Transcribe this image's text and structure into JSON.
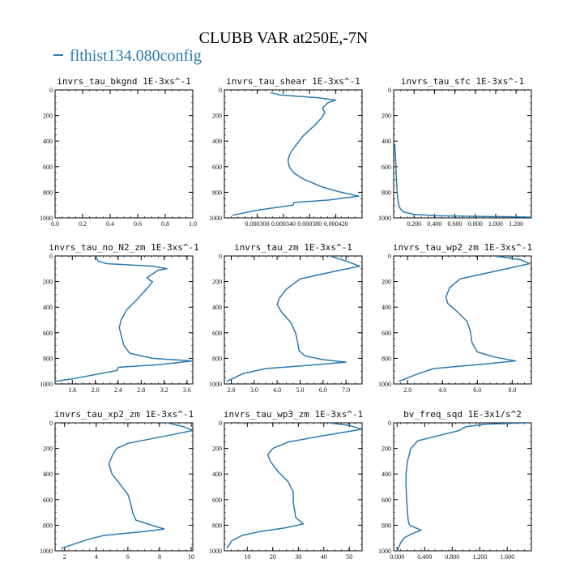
{
  "title": "CLUBB VAR at250E,-7N",
  "legend": [
    {
      "name": "flthist134.080config",
      "color": "#2a7ab0"
    }
  ],
  "chart_data": [
    {
      "type": "line",
      "title": "invrs_tau_bkgnd   1E-3xs^-1",
      "xlim": [
        0,
        1.0
      ],
      "xticks": [
        "0.0",
        "0.2",
        "0.4",
        "0.6",
        "0.8",
        "1.0"
      ],
      "ylim": [
        1000,
        0
      ],
      "yticks": [
        "0",
        "200",
        "400",
        "600",
        "800",
        "1000"
      ],
      "series": [
        {
          "name": "flthist134.080config",
          "x": [],
          "y": []
        }
      ]
    },
    {
      "type": "line",
      "title": "invrs_tau_shear   1E-3xs^-1",
      "xlim": [
        0.00025,
        0.00046
      ],
      "xticks": [
        "0.000300",
        "0.000340",
        "0.000380",
        "0.000420"
      ],
      "ylim": [
        1000,
        0
      ],
      "yticks": [
        "0",
        "200",
        "400",
        "600",
        "800",
        "1000"
      ],
      "series": [
        {
          "name": "flthist134.080config",
          "x": [
            0.00032,
            0.000335,
            0.00039,
            0.00042,
            0.000408,
            0.0004,
            0.000403,
            0.000398,
            0.000387,
            0.00037,
            0.000358,
            0.00035,
            0.000347,
            0.000349,
            0.000356,
            0.000372,
            0.0004,
            0.000428,
            0.000455,
            0.00041,
            0.000356,
            0.000355,
            0.0003,
            0.000262
          ],
          "y": [
            20,
            40,
            60,
            80,
            100,
            140,
            180,
            220,
            280,
            360,
            440,
            500,
            550,
            600,
            650,
            700,
            760,
            800,
            830,
            860,
            880,
            900,
            940,
            980
          ]
        }
      ]
    },
    {
      "type": "line",
      "title": "invrs_tau_sfc   1E-3xs^-1",
      "xlim": [
        0,
        1.35
      ],
      "xticks": [
        "0.200",
        "0.400",
        "0.600",
        "0.800",
        "1.000",
        "1.200"
      ],
      "ylim": [
        1000,
        0
      ],
      "yticks": [
        "0",
        "200",
        "400",
        "600",
        "800",
        "1000"
      ],
      "series": [
        {
          "name": "flthist134.080config",
          "x": [
            0.01,
            0.02,
            0.025,
            0.03,
            0.035,
            0.04,
            0.05,
            0.065,
            0.1,
            0.2,
            0.4,
            0.8,
            1.2,
            1.35
          ],
          "y": [
            420,
            550,
            650,
            750,
            800,
            850,
            900,
            930,
            955,
            972,
            982,
            988,
            992,
            994
          ]
        }
      ]
    },
    {
      "type": "line",
      "title": "invrs_tau_no_N2_zm   1E-3xs^-1",
      "xlim": [
        1.3,
        3.7
      ],
      "xticks": [
        "1.6",
        "2.0",
        "2.4",
        "2.8",
        "3.2",
        "3.6"
      ],
      "ylim": [
        1000,
        0
      ],
      "yticks": [
        "0",
        "200",
        "400",
        "600",
        "800",
        "1000"
      ],
      "series": [
        {
          "name": "flthist134.080config",
          "x": [
            2.0,
            2.05,
            2.2,
            3.0,
            3.25,
            3.1,
            2.9,
            2.95,
            3.0,
            2.95,
            2.75,
            2.55,
            2.45,
            2.42,
            2.45,
            2.5,
            2.6,
            3.0,
            3.7,
            3.1,
            2.4,
            2.38,
            1.6,
            1.3
          ],
          "y": [
            0,
            40,
            60,
            80,
            100,
            110,
            170,
            190,
            200,
            230,
            330,
            420,
            500,
            560,
            620,
            700,
            760,
            800,
            820,
            850,
            870,
            895,
            960,
            980
          ]
        }
      ]
    },
    {
      "type": "line",
      "title": "invrs_tau_zm   1E-3xs^-1",
      "xlim": [
        1.7,
        7.7
      ],
      "xticks": [
        "2.0",
        "3.0",
        "4.0",
        "5.0",
        "6.0",
        "7.0"
      ],
      "ylim": [
        1000,
        0
      ],
      "yticks": [
        "0",
        "200",
        "400",
        "600",
        "800",
        "1000"
      ],
      "series": [
        {
          "name": "flthist134.080config",
          "x": [
            6.3,
            7.0,
            7.6,
            6.5,
            5.0,
            4.4,
            4.1,
            4.0,
            4.2,
            4.6,
            4.8,
            4.9,
            4.95,
            5.2,
            6.0,
            7.0,
            5.0,
            3.5,
            2.5,
            1.8
          ],
          "y": [
            0,
            40,
            80,
            120,
            180,
            260,
            330,
            380,
            440,
            520,
            600,
            680,
            740,
            780,
            810,
            830,
            860,
            880,
            920,
            980
          ]
        }
      ]
    },
    {
      "type": "line",
      "title": "invrs_tau_wp2_zm   1E-3xs^-1",
      "xlim": [
        1.2,
        9.1
      ],
      "xticks": [
        "2.0",
        "4.0",
        "6.0",
        "8.0"
      ],
      "ylim": [
        1000,
        0
      ],
      "yticks": [
        "0",
        "200",
        "400",
        "600",
        "800",
        "1000"
      ],
      "series": [
        {
          "name": "flthist134.080config",
          "x": [
            7.0,
            8.5,
            9.0,
            7.0,
            5.0,
            4.4,
            4.2,
            4.3,
            4.8,
            5.4,
            5.6,
            5.7,
            6.0,
            7.0,
            8.2,
            6.0,
            3.5,
            2.6,
            1.5
          ],
          "y": [
            0,
            30,
            60,
            120,
            180,
            250,
            320,
            370,
            430,
            510,
            590,
            680,
            750,
            790,
            820,
            850,
            880,
            920,
            980
          ]
        }
      ]
    },
    {
      "type": "line",
      "title": "invrs_tau_xp2_zm   1E-3xs^-1",
      "xlim": [
        1.4,
        10.1
      ],
      "xticks": [
        "2",
        "4",
        "6",
        "8",
        "10"
      ],
      "ylim": [
        1000,
        0
      ],
      "yticks": [
        "0",
        "200",
        "400",
        "600",
        "800",
        "1000"
      ],
      "series": [
        {
          "name": "flthist134.080config",
          "x": [
            8.5,
            9.5,
            10.1,
            8.5,
            6.0,
            5.3,
            5.0,
            4.8,
            5.0,
            5.5,
            6.0,
            6.2,
            6.3,
            6.5,
            7.5,
            8.3,
            7.0,
            4.5,
            3.5,
            1.8
          ],
          "y": [
            0,
            30,
            60,
            100,
            160,
            200,
            260,
            320,
            400,
            480,
            560,
            640,
            700,
            760,
            800,
            830,
            850,
            880,
            910,
            980
          ]
        }
      ]
    },
    {
      "type": "line",
      "title": "invrs_tau_wp3_zm   1E-3xs^-1",
      "xlim": [
        1,
        55
      ],
      "xticks": [
        "10",
        "20",
        "30",
        "40",
        "50"
      ],
      "ylim": [
        1000,
        0
      ],
      "yticks": [
        "0",
        "200",
        "400",
        "600",
        "800",
        "1000"
      ],
      "series": [
        {
          "name": "flthist134.080config",
          "x": [
            42,
            50,
            55,
            40,
            26,
            20,
            18,
            19,
            22,
            26,
            28,
            28,
            28.5,
            29,
            32,
            25,
            15,
            8,
            4,
            2
          ],
          "y": [
            0,
            20,
            50,
            100,
            150,
            200,
            250,
            300,
            380,
            460,
            540,
            620,
            680,
            740,
            790,
            820,
            850,
            880,
            920,
            980
          ]
        }
      ]
    },
    {
      "type": "line",
      "title": "bv_freq_sqd   1E-3x1/s^2",
      "xlim": [
        -0.05,
        1.95
      ],
      "xticks": [
        "0.000",
        "0.400",
        "0.800",
        "1.200",
        "1.600"
      ],
      "ylim": [
        1000,
        0
      ],
      "yticks": [
        "0",
        "200",
        "400",
        "600",
        "800",
        "1000"
      ],
      "series": [
        {
          "name": "flthist134.080config",
          "x": [
            1.9,
            1.3,
            1.0,
            0.9,
            0.6,
            0.3,
            0.2,
            0.15,
            0.13,
            0.13,
            0.14,
            0.15,
            0.16,
            0.18,
            0.35,
            0.2,
            0.1,
            0.05,
            0.0
          ],
          "y": [
            0,
            10,
            30,
            60,
            100,
            140,
            200,
            300,
            400,
            500,
            600,
            700,
            760,
            800,
            840,
            870,
            900,
            940,
            1000
          ]
        }
      ]
    }
  ]
}
